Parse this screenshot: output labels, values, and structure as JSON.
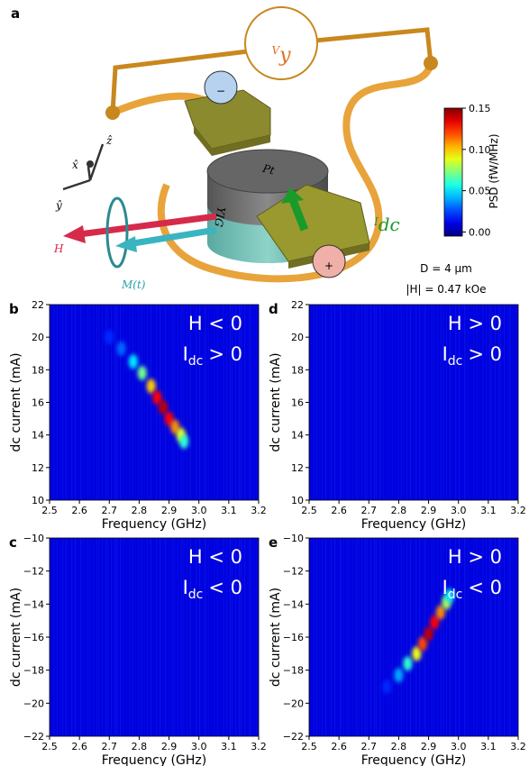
{
  "panel_label": "a",
  "device": {
    "voltage": {
      "symbol": "V",
      "subscript": "y"
    },
    "current": {
      "symbol": "I",
      "subscript": "dc"
    },
    "field": "H",
    "magnetization": "M(t)",
    "top_layer": "Pt",
    "bottom_layer": "YIG",
    "minus": "−",
    "plus": "+",
    "axes": {
      "x": "x̂",
      "y": "ŷ",
      "z": "ẑ"
    },
    "diameter": "D = 4 µm",
    "field_magnitude": "|H| = 0.47 kOe"
  },
  "colorbar": {
    "label": "PSD (fW/MHz)",
    "lim": [
      -0.005,
      0.15
    ],
    "ticks": [
      0.15,
      {
        "value": 0.1,
        "label": "0.10"
      },
      0.05,
      {
        "value": 0,
        "label": "0.00"
      }
    ]
  },
  "chart_data": [
    {
      "type": "heatmap",
      "panel": "b",
      "x_label": "Frequency (GHz)",
      "y_label": "dc current (mA)",
      "field": "H < 0",
      "current": {
        "symbol": "I",
        "subscript": "dc",
        "relation": "> 0"
      },
      "xlim": [
        2.5,
        3.2
      ],
      "xticks": [
        2.5,
        2.6,
        2.7,
        2.8,
        2.9,
        {
          "value": 3,
          "label": "3.0"
        },
        3.1,
        3.2
      ],
      "ylim": [
        10,
        22
      ],
      "yticks": [
        10,
        12,
        14,
        16,
        18,
        20,
        22
      ],
      "background": 0.01,
      "ridge": {
        "x": [
          2.7,
          2.74,
          2.78,
          2.81,
          2.84,
          2.86,
          2.88,
          2.9,
          2.92,
          2.94,
          2.95
        ],
        "y": [
          20,
          19.3,
          18.5,
          17.8,
          17,
          16.3,
          15.7,
          15,
          14.5,
          14,
          13.6
        ],
        "values": [
          0.02,
          0.03,
          0.05,
          0.07,
          0.1,
          0.13,
          0.14,
          0.13,
          0.11,
          0.09,
          0.06
        ]
      }
    },
    {
      "type": "heatmap",
      "panel": "d",
      "x_label": "Frequency (GHz)",
      "y_label": "dc current (mA)",
      "field": "H > 0",
      "current": {
        "symbol": "I",
        "subscript": "dc",
        "relation": "> 0"
      },
      "xlim": [
        2.5,
        3.2
      ],
      "xticks": [
        2.5,
        2.6,
        2.7,
        2.8,
        2.9,
        {
          "value": 3,
          "label": "3.0"
        },
        3.1,
        3.2
      ],
      "ylim": [
        10,
        22
      ],
      "yticks": [
        10,
        12,
        14,
        16,
        18,
        20,
        22
      ],
      "background": 0.01
    },
    {
      "type": "heatmap",
      "panel": "c",
      "x_label": "Frequency (GHz)",
      "y_label": "dc current (mA)",
      "field": "H < 0",
      "current": {
        "symbol": "I",
        "subscript": "dc",
        "relation": "< 0"
      },
      "xlim": [
        2.5,
        3.2
      ],
      "xticks": [
        2.5,
        2.6,
        2.7,
        2.8,
        2.9,
        {
          "value": 3,
          "label": "3.0"
        },
        3.1,
        3.2
      ],
      "ylim": [
        -22,
        -10
      ],
      "yticks": [
        {
          "value": -10,
          "label": "−10"
        },
        {
          "value": -12,
          "label": "−12"
        },
        {
          "value": -14,
          "label": "−14"
        },
        {
          "value": -16,
          "label": "−16"
        },
        {
          "value": -18,
          "label": "−18"
        },
        {
          "value": -20,
          "label": "−20"
        },
        {
          "value": -22,
          "label": "−22"
        }
      ],
      "background": 0.01
    },
    {
      "type": "heatmap",
      "panel": "e",
      "x_label": "Frequency (GHz)",
      "y_label": "dc current (mA)",
      "field": "H > 0",
      "current": {
        "symbol": "I",
        "subscript": "dc",
        "relation": "< 0"
      },
      "xlim": [
        2.5,
        3.2
      ],
      "xticks": [
        2.5,
        2.6,
        2.7,
        2.8,
        2.9,
        {
          "value": 3,
          "label": "3.0"
        },
        3.1,
        3.2
      ],
      "ylim": [
        -22,
        -10
      ],
      "yticks": [
        {
          "value": -10,
          "label": "−10"
        },
        {
          "value": -12,
          "label": "−12"
        },
        {
          "value": -14,
          "label": "−14"
        },
        {
          "value": -16,
          "label": "−16"
        },
        {
          "value": -18,
          "label": "−18"
        },
        {
          "value": -20,
          "label": "−20"
        },
        {
          "value": -22,
          "label": "−22"
        }
      ],
      "background": 0.01,
      "ridge": {
        "x": [
          2.76,
          2.8,
          2.83,
          2.86,
          2.88,
          2.9,
          2.92,
          2.94,
          2.96,
          2.97
        ],
        "y": [
          -19,
          -18.3,
          -17.6,
          -17,
          -16.4,
          -15.8,
          -15.1,
          -14.5,
          -13.9,
          -13.5
        ],
        "values": [
          0.02,
          0.04,
          0.06,
          0.09,
          0.12,
          0.14,
          0.13,
          0.11,
          0.08,
          0.05
        ]
      }
    }
  ]
}
